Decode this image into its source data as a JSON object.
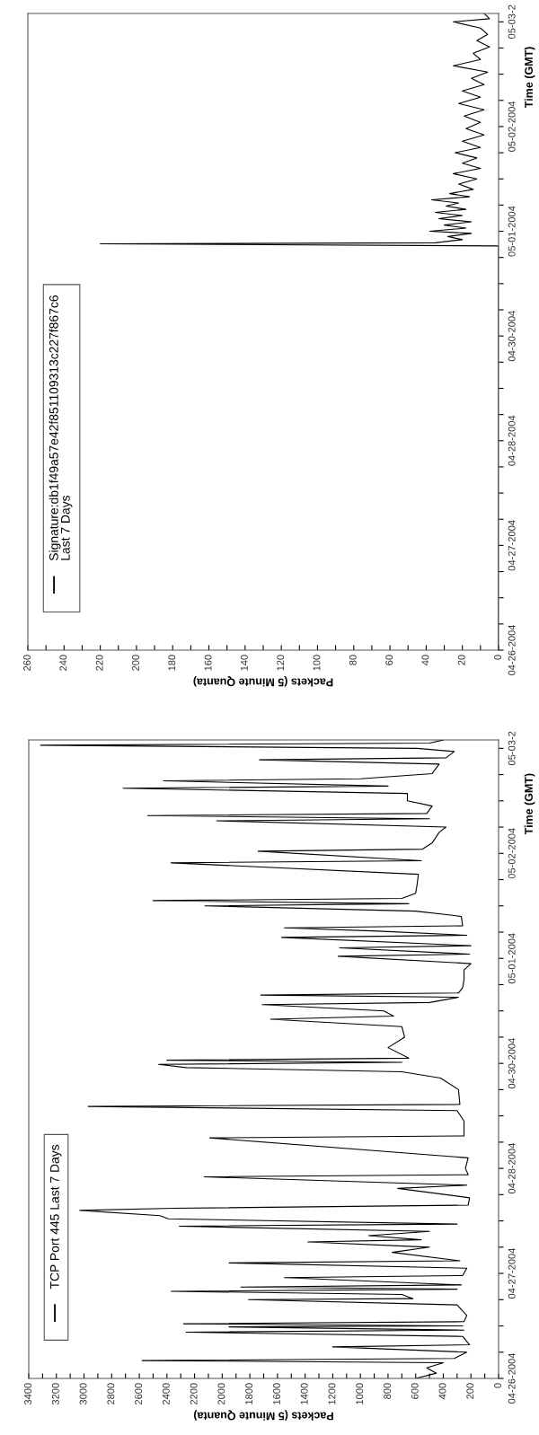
{
  "chart_data": [
    {
      "type": "line",
      "orientation": "horizontal",
      "xlabel": "Packets (5 Minute Quanta)",
      "ylabel": "Time (GMT)",
      "legend": "bottom left",
      "series": [
        {
          "name": "Signature:db1f49a57e42f851109313c227f867c6\nLast 7 Days",
          "color": "#000000",
          "values": [
            0,
            0,
            220,
            35,
            20,
            28,
            15,
            38,
            18,
            30,
            15,
            33,
            20,
            35,
            18,
            29,
            22,
            37,
            16,
            27,
            14,
            22,
            12,
            25,
            10,
            20,
            12,
            24,
            10,
            20,
            8,
            18,
            10,
            19,
            8,
            22,
            10,
            20,
            8,
            15,
            6,
            25,
            10,
            14,
            5,
            12,
            6,
            10,
            25,
            5,
            8
          ],
          "x": [
            "2004-04-27T00:00",
            "2004-04-30T20:38",
            "2004-04-30T21:07",
            "2004-04-30T21:22",
            "2004-04-30T22:05",
            "2004-04-30T22:48",
            "2004-04-30T23:31",
            "2004-05-01T00:00",
            "2004-05-01T00:43",
            "2004-05-01T01:26",
            "2004-05-01T02:10",
            "2004-05-01T02:53",
            "2004-05-01T03:36",
            "2004-05-01T04:19",
            "2004-05-01T05:02",
            "2004-05-01T05:46",
            "2004-05-01T06:29",
            "2004-05-01T07:12",
            "2004-05-01T07:55",
            "2004-05-01T08:38",
            "2004-05-01T09:36",
            "2004-05-01T10:48",
            "2004-05-01T12:00",
            "2004-05-01T13:12",
            "2004-05-01T14:24",
            "2004-05-01T15:36",
            "2004-05-01T16:48",
            "2004-05-01T18:00",
            "2004-05-01T19:12",
            "2004-05-01T20:38",
            "2004-05-01T22:05",
            "2004-05-01T23:31",
            "2004-05-02T00:58",
            "2004-05-02T02:24",
            "2004-05-02T03:50",
            "2004-05-02T05:17",
            "2004-05-02T06:43",
            "2004-05-02T08:10",
            "2004-05-02T09:36",
            "2004-05-02T11:02",
            "2004-05-02T12:29",
            "2004-05-02T13:55",
            "2004-05-02T15:22",
            "2004-05-02T16:48",
            "2004-05-02T18:14",
            "2004-05-02T19:41",
            "2004-05-02T21:07",
            "2004-05-02T22:34",
            "2004-05-03T00:00",
            "2004-05-03T00:43",
            "2004-05-03T01:55"
          ]
        }
      ],
      "ylim": [
        "2004-04-27T00:00",
        "2004-05-03T01:55"
      ],
      "yticks": [
        {
          "value": "2004-04-27",
          "label": "04-26-2004"
        },
        {
          "value": "2004-04-27T06:00",
          "label": null
        },
        {
          "value": "2004-04-27T12:00",
          "label": null
        },
        {
          "value": "2004-04-27T18:00",
          "label": null
        },
        {
          "value": "2004-04-28",
          "label": "04-27-2004"
        },
        {
          "value": "2004-04-28T06:00",
          "label": null
        },
        {
          "value": "2004-04-28T12:00",
          "label": null
        },
        {
          "value": "2004-04-28T18:00",
          "label": null
        },
        {
          "value": "2004-04-29",
          "label": "04-28-2004"
        },
        {
          "value": "2004-04-29T06:00",
          "label": null
        },
        {
          "value": "2004-04-29T12:00",
          "label": null
        },
        {
          "value": "2004-04-29T18:00",
          "label": null
        },
        {
          "value": "2004-04-30",
          "label": "04-30-2004"
        },
        {
          "value": "2004-04-30T06:00",
          "label": null
        },
        {
          "value": "2004-04-30T12:00",
          "label": null
        },
        {
          "value": "2004-04-30T18:00",
          "label": null
        },
        {
          "value": "2004-05-01",
          "label": "05-01-2004"
        },
        {
          "value": "2004-05-01T06:00",
          "label": null
        },
        {
          "value": "2004-05-01T12:00",
          "label": null
        },
        {
          "value": "2004-05-01T18:00",
          "label": null
        },
        {
          "value": "2004-05-02",
          "label": "05-02-2004"
        },
        {
          "value": "2004-05-02T06:00",
          "label": null
        },
        {
          "value": "2004-05-02T12:00",
          "label": null
        },
        {
          "value": "2004-05-02T18:00",
          "label": null
        },
        {
          "value": "2004-05-03",
          "label": "05-03-2"
        }
      ],
      "xlim": [
        260,
        0
      ],
      "xticks": [
        0,
        {
          "value": 10,
          "label": null
        },
        20,
        {
          "value": 30,
          "label": null
        },
        40,
        {
          "value": 50,
          "label": null
        },
        60,
        {
          "value": 70,
          "label": null
        },
        80,
        {
          "value": 90,
          "label": null
        },
        100,
        {
          "value": 110,
          "label": null
        },
        120,
        {
          "value": 130,
          "label": null
        },
        140,
        {
          "value": 150,
          "label": null
        },
        160,
        {
          "value": 170,
          "label": null
        },
        180,
        {
          "value": 190,
          "label": null
        },
        200,
        {
          "value": 210,
          "label": null
        },
        220,
        {
          "value": 230,
          "label": null
        },
        240,
        {
          "value": 250,
          "label": null
        },
        260
      ]
    },
    {
      "type": "line",
      "orientation": "horizontal",
      "xlabel": "Packets (5 Minute Quanta)",
      "ylabel": "Time (GMT)",
      "legend": "bottom left",
      "series": [
        {
          "name": "TCP Port 445 Last 7 Days",
          "color": "#000000",
          "values": [
            600,
            450,
            520,
            400,
            2580,
            320,
            230,
            1200,
            210,
            260,
            2260,
            250,
            1950,
            260,
            2280,
            250,
            230,
            300,
            1810,
            620,
            700,
            2370,
            300,
            1865,
            270,
            1550,
            260,
            230,
            1950,
            280,
            770,
            500,
            1380,
            560,
            940,
            500,
            2310,
            300,
            2390,
            2450,
            3030,
            2350,
            220,
            210,
            730,
            230,
            2130,
            220,
            240,
            220,
            2090,
            250,
            250,
            300,
            2970,
            280,
            290,
            420,
            700,
            2260,
            2460,
            700,
            2400,
            650,
            800,
            680,
            700,
            1650,
            760,
            830,
            1710,
            500,
            290,
            1720,
            290,
            260,
            250,
            250,
            200,
            1160,
            210,
            1150,
            200,
            1570,
            230,
            870,
            1550,
            260,
            270,
            600,
            2125,
            650,
            2500,
            700,
            600,
            590,
            580,
            2370,
            560,
            1740,
            550,
            480,
            430,
            380,
            2040,
            500,
            2540,
            520,
            480,
            660,
            660,
            2717,
            800,
            2425,
            1000,
            480,
            430,
            1730,
            380,
            320,
            590,
            3315,
            500,
            400
          ],
          "x": [
            "2004-04-27T00:00",
            "2004-04-27T01:12",
            "2004-04-27T02:24",
            "2004-04-27T03:36",
            "2004-04-27T04:05",
            "2004-04-27T04:34",
            "2004-04-27T06:00",
            "2004-04-27T07:12",
            "2004-04-27T07:41",
            "2004-04-27T09:36",
            "2004-04-27T10:34",
            "2004-04-27T11:02",
            "2004-04-27T11:46",
            "2004-04-27T12:00",
            "2004-04-27T12:29",
            "2004-04-27T12:58",
            "2004-04-27T14:24",
            "2004-04-27T16:48",
            "2004-04-27T18:00",
            "2004-04-27T18:14",
            "2004-04-27T19:12",
            "2004-04-27T19:55",
            "2004-04-27T20:24",
            "2004-04-27T20:53",
            "2004-04-27T21:22",
            "2004-04-27T23:02",
            "2004-04-27T23:31",
            "2004-04-28T01:12",
            "2004-04-28T02:24",
            "2004-04-28T02:53",
            "2004-04-28T04:48",
            "2004-04-28T06:00",
            "2004-04-28T07:12",
            "2004-04-28T07:41",
            "2004-04-28T08:38",
            "2004-04-28T09:36",
            "2004-04-28T10:48",
            "2004-04-28T11:17",
            "2004-04-28T12:29",
            "2004-04-28T13:12",
            "2004-04-28T14:24",
            "2004-04-28T14:53",
            "2004-04-28T15:36",
            "2004-04-28T17:17",
            "2004-04-28T19:26",
            "2004-04-28T20:10",
            "2004-04-28T22:05",
            "2004-04-28T22:34",
            "2004-04-29T00:00",
            "2004-04-29T02:24",
            "2004-04-29T06:58",
            "2004-04-29T07:26",
            "2004-04-29T10:48",
            "2004-04-29T13:12",
            "2004-04-29T14:10",
            "2004-04-29T14:38",
            "2004-04-29T18:00",
            "2004-04-29T20:38",
            "2004-04-29T22:05",
            "2004-04-29T23:02",
            "2004-04-29T23:46",
            "2004-04-30T00:14",
            "2004-04-30T00:43",
            "2004-04-30T01:12",
            "2004-04-30T03:36",
            "2004-04-30T06:00",
            "2004-04-30T08:24",
            "2004-04-30T10:05",
            "2004-04-30T10:48",
            "2004-04-30T12:00",
            "2004-04-30T13:26",
            "2004-04-30T13:55",
            "2004-04-30T15:07",
            "2004-04-30T15:36",
            "2004-04-30T16:05",
            "2004-04-30T17:17",
            "2004-04-30T19:12",
            "2004-04-30T21:22",
            "2004-04-30T22:48",
            "2004-05-01T00:29",
            "2004-05-01T00:58",
            "2004-05-01T02:24",
            "2004-05-01T02:53",
            "2004-05-01T04:48",
            "2004-05-01T05:17",
            "2004-05-01T06:14",
            "2004-05-01T06:58",
            "2004-05-01T07:26",
            "2004-05-01T09:36",
            "2004-05-01T10:48",
            "2004-05-01T12:00",
            "2004-05-01T12:29",
            "2004-05-01T13:12",
            "2004-05-01T13:41",
            "2004-05-01T14:53",
            "2004-05-01T16:48",
            "2004-05-01T19:12",
            "2004-05-01T21:50",
            "2004-05-01T22:19",
            "2004-05-02T00:29",
            "2004-05-02T00:58",
            "2004-05-02T02:24",
            "2004-05-02T04:48",
            "2004-05-02T06:00",
            "2004-05-02T07:26",
            "2004-05-02T07:55",
            "2004-05-02T08:38",
            "2004-05-02T09:07",
            "2004-05-02T10:48",
            "2004-05-02T12:00",
            "2004-05-02T13:41",
            "2004-05-02T14:53",
            "2004-05-02T15:22",
            "2004-05-02T16:34",
            "2004-05-02T17:02",
            "2004-05-02T18:14",
            "2004-05-02T20:24",
            "2004-05-02T21:22",
            "2004-05-02T21:50",
            "2004-05-02T23:17",
            "2004-05-03T00:00",
            "2004-05-03T00:43",
            "2004-05-03T01:12",
            "2004-05-03T01:55"
          ]
        }
      ],
      "ylim": [
        "2004-04-27T00:00",
        "2004-05-03T01:55"
      ],
      "yticks": [
        {
          "value": "2004-04-27",
          "label": "04-26-2004"
        },
        {
          "value": "2004-04-27T06:00",
          "label": null
        },
        {
          "value": "2004-04-27T12:00",
          "label": null
        },
        {
          "value": "2004-04-27T18:00",
          "label": null
        },
        {
          "value": "2004-04-28",
          "label": "04-27-2004"
        },
        {
          "value": "2004-04-28T06:00",
          "label": null
        },
        {
          "value": "2004-04-28T12:00",
          "label": null
        },
        {
          "value": "2004-04-28T18:00",
          "label": null
        },
        {
          "value": "2004-04-29",
          "label": "04-28-2004"
        },
        {
          "value": "2004-04-29T06:00",
          "label": null
        },
        {
          "value": "2004-04-29T12:00",
          "label": null
        },
        {
          "value": "2004-04-29T18:00",
          "label": null
        },
        {
          "value": "2004-04-30",
          "label": "04-30-2004"
        },
        {
          "value": "2004-04-30T06:00",
          "label": null
        },
        {
          "value": "2004-04-30T12:00",
          "label": null
        },
        {
          "value": "2004-04-30T18:00",
          "label": null
        },
        {
          "value": "2004-05-01",
          "label": "05-01-2004"
        },
        {
          "value": "2004-05-01T06:00",
          "label": null
        },
        {
          "value": "2004-05-01T12:00",
          "label": null
        },
        {
          "value": "2004-05-01T18:00",
          "label": null
        },
        {
          "value": "2004-05-02",
          "label": "05-02-2004"
        },
        {
          "value": "2004-05-02T06:00",
          "label": null
        },
        {
          "value": "2004-05-02T12:00",
          "label": null
        },
        {
          "value": "2004-05-02T18:00",
          "label": null
        },
        {
          "value": "2004-05-03",
          "label": "05-03-2"
        }
      ],
      "xlim": [
        3400,
        0
      ],
      "xticks": [
        0,
        {
          "value": 100,
          "label": null
        },
        200,
        {
          "value": 300,
          "label": null
        },
        400,
        {
          "value": 500,
          "label": null
        },
        600,
        {
          "value": 700,
          "label": null
        },
        800,
        {
          "value": 900,
          "label": null
        },
        1000,
        {
          "value": 1100,
          "label": null
        },
        1200,
        {
          "value": 1300,
          "label": null
        },
        1400,
        {
          "value": 1500,
          "label": null
        },
        1600,
        {
          "value": 1700,
          "label": null
        },
        1800,
        {
          "value": 1900,
          "label": null
        },
        2000,
        {
          "value": 2100,
          "label": null
        },
        2200,
        {
          "value": 2300,
          "label": null
        },
        2400,
        {
          "value": 2500,
          "label": null
        },
        2600,
        {
          "value": 2700,
          "label": null
        },
        2800,
        {
          "value": 2900,
          "label": null
        },
        3000,
        {
          "value": 3100,
          "label": null
        },
        3200,
        {
          "value": 3300,
          "label": null
        },
        3400
      ]
    }
  ]
}
